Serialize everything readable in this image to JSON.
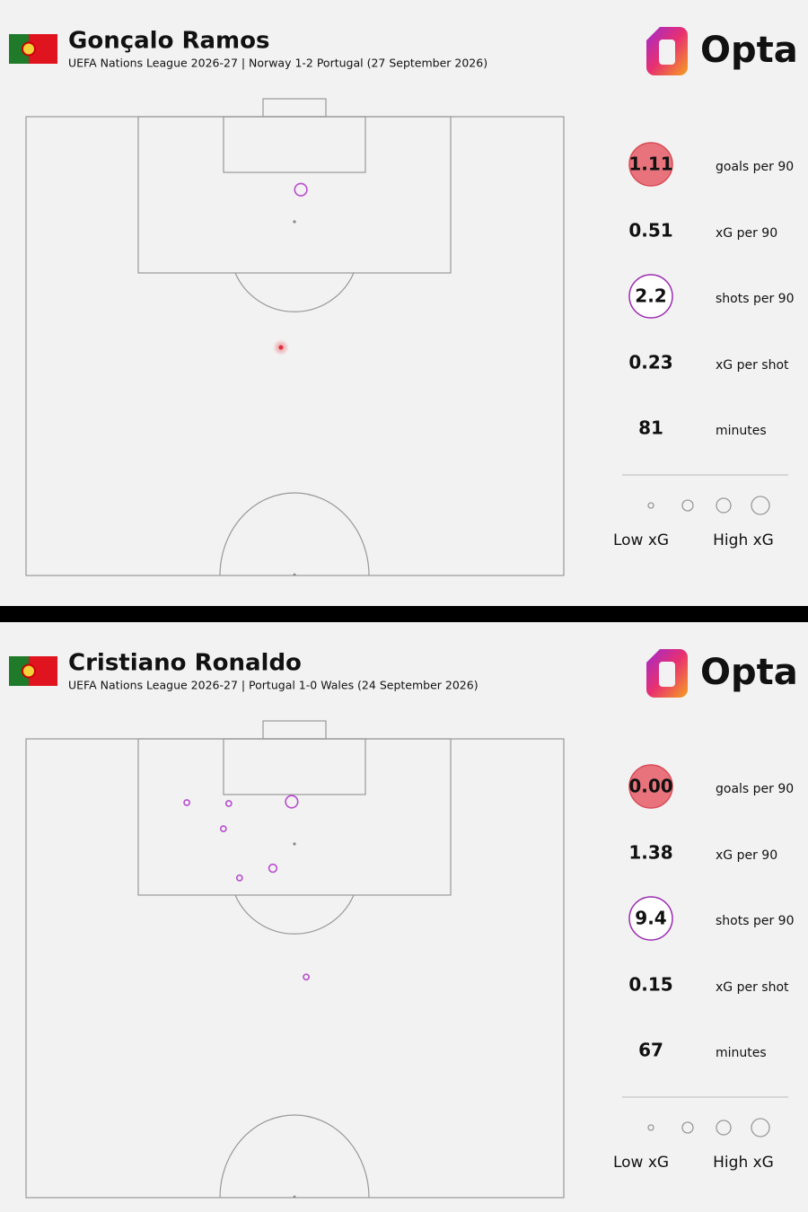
{
  "panels": [
    {
      "player": "Gonçalo Ramos",
      "subtitle": "UEFA Nations League 2026-27 | Norway 1-2 Portugal (27 September 2026)",
      "brand": "Opta",
      "stats": [
        {
          "value": "1.11",
          "label": "goals per 90"
        },
        {
          "value": "0.51",
          "label": "xG per 90"
        },
        {
          "value": "2.2",
          "label": "shots per 90"
        },
        {
          "value": "0.23",
          "label": "xG per shot"
        },
        {
          "value": "81",
          "label": "minutes"
        }
      ],
      "legend": {
        "low": "Low xG",
        "high": "High xG"
      },
      "shots": [
        {
          "x": 51.1,
          "y": 15.9,
          "xg": 0.4,
          "goal": false
        },
        {
          "x": 47.4,
          "y": 50.3,
          "xg": 0.06,
          "goal": true
        }
      ]
    },
    {
      "player": "Cristiano Ronaldo",
      "subtitle": "UEFA Nations League 2026-27 | Portugal 1-0 Wales (24 September 2026)",
      "brand": "Opta",
      "stats": [
        {
          "value": "0.00",
          "label": "goals per 90"
        },
        {
          "value": "1.38",
          "label": "xG per 90"
        },
        {
          "value": "9.4",
          "label": "shots per 90"
        },
        {
          "value": "0.15",
          "label": "xG per shot"
        },
        {
          "value": "67",
          "label": "minutes"
        }
      ],
      "legend": {
        "low": "Low xG",
        "high": "High xG"
      },
      "shots": [
        {
          "x": 29.9,
          "y": 13.9,
          "xg": 0.09,
          "goal": false
        },
        {
          "x": 37.7,
          "y": 14.1,
          "xg": 0.09,
          "goal": false
        },
        {
          "x": 49.4,
          "y": 13.7,
          "xg": 0.4,
          "goal": false
        },
        {
          "x": 36.7,
          "y": 19.6,
          "xg": 0.09,
          "goal": false
        },
        {
          "x": 45.9,
          "y": 28.2,
          "xg": 0.2,
          "goal": false
        },
        {
          "x": 39.7,
          "y": 30.3,
          "xg": 0.09,
          "goal": false
        },
        {
          "x": 52.1,
          "y": 51.9,
          "xg": 0.09,
          "goal": false
        }
      ]
    }
  ]
}
